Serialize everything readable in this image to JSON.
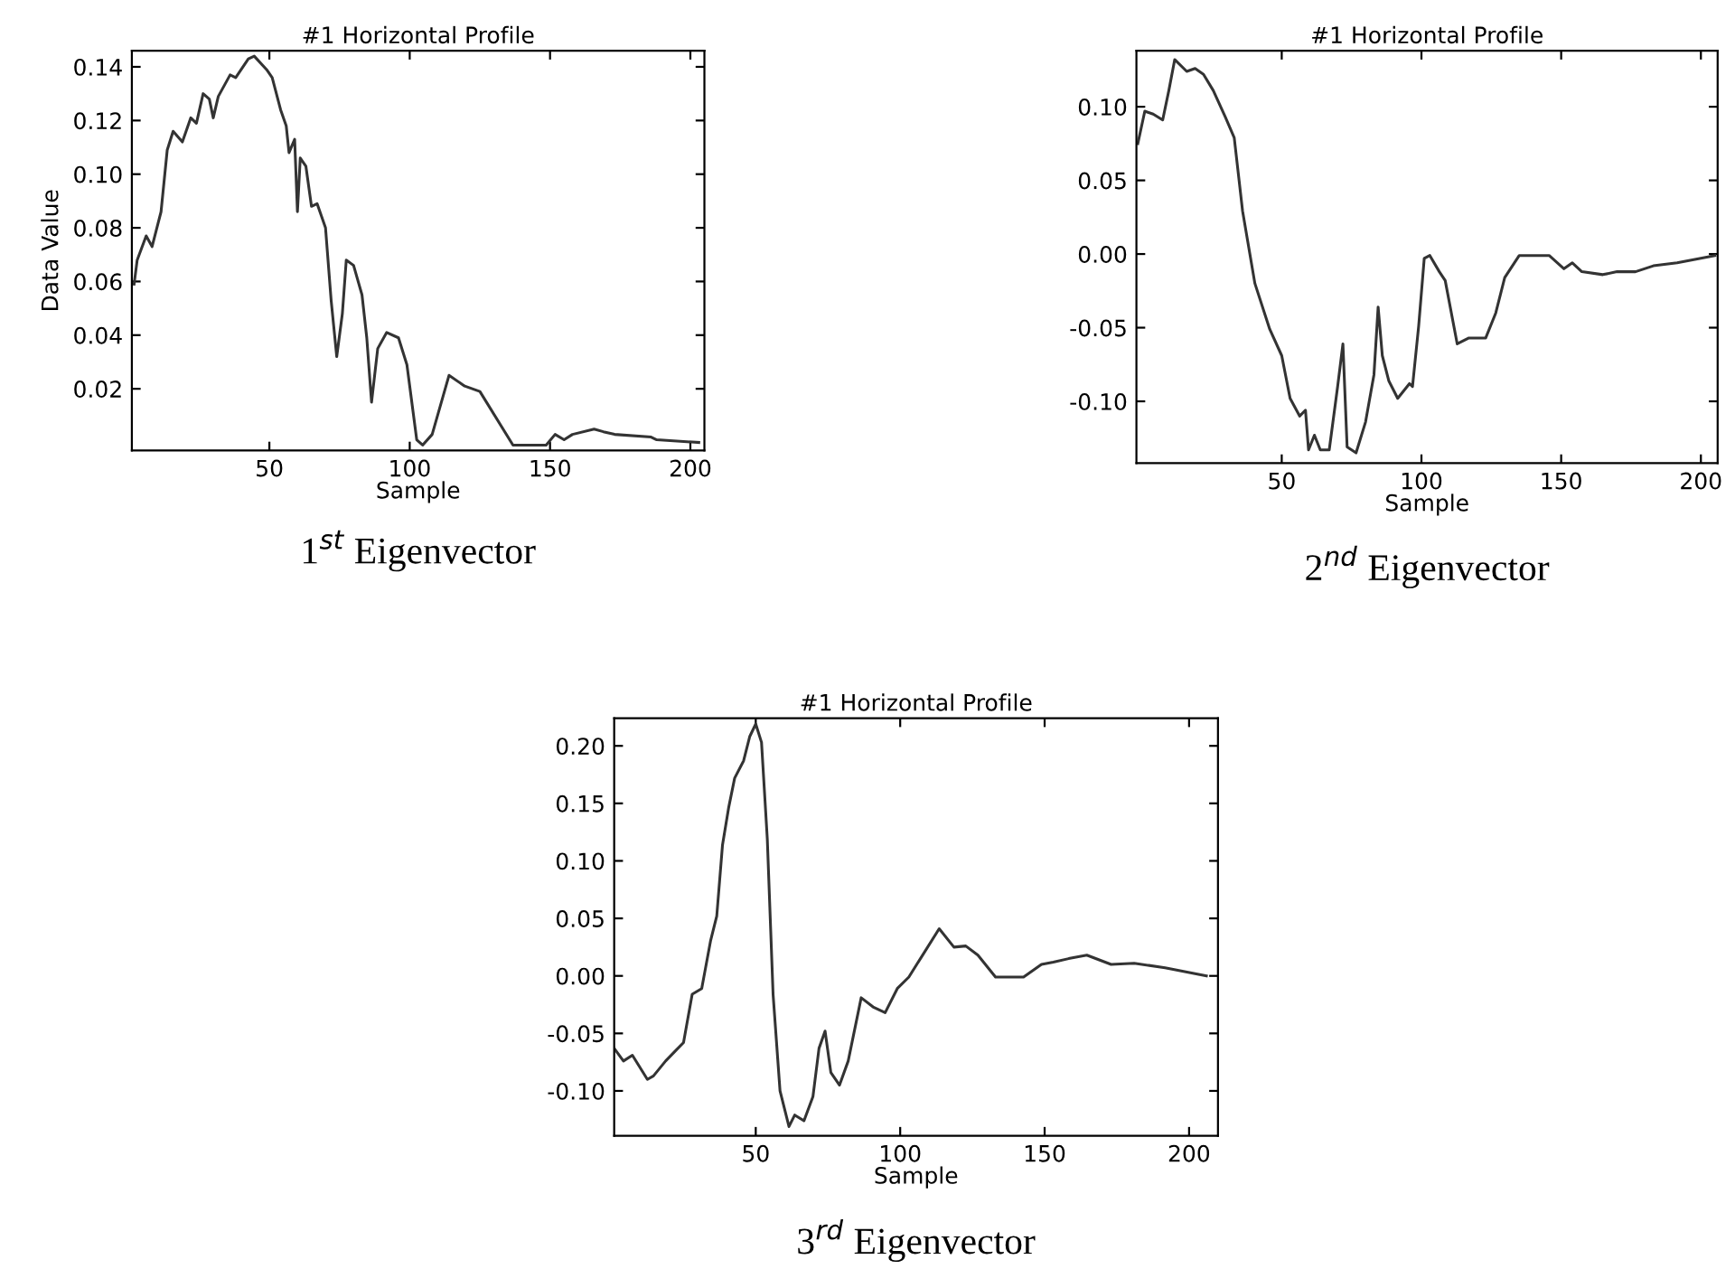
{
  "chart_data": [
    {
      "type": "line",
      "title": "#1 Horizontal Profile",
      "xlabel": "Sample",
      "ylabel": "Data Value",
      "annotations": [
        "1$^{st}$ Eigenvector"
      ],
      "xlim": [
        1,
        205
      ],
      "ylim": [
        -0.003,
        0.146
      ],
      "xticks": [
        50,
        100,
        150,
        200
      ],
      "yticks": [
        {
          "value": 0.02,
          "label": "0.02"
        },
        {
          "value": 0.04,
          "label": "0.04"
        },
        {
          "value": 0.06,
          "label": "0.06"
        },
        {
          "value": 0.08,
          "label": "0.08"
        },
        {
          "value": 0.1,
          "label": "0.10"
        },
        {
          "value": 0.12,
          "label": "0.12"
        },
        {
          "value": 0.14,
          "label": "0.14"
        }
      ],
      "series": [
        {
          "color": "#333333",
          "x": [
            1.8,
            2.9,
            6.1,
            8.2,
            11.4,
            13.6,
            15.7,
            19,
            22,
            24,
            26.4,
            28.6,
            30,
            31.8,
            36,
            38,
            42.5,
            44.6,
            49,
            51,
            54,
            56,
            57,
            59,
            60,
            61,
            63,
            65,
            67,
            70,
            72,
            74,
            76,
            77.4,
            80,
            83,
            84.7,
            86.4,
            88.6,
            91.8,
            96,
            99,
            102.5,
            104.6,
            108,
            114,
            119.6,
            125,
            136.8,
            148.6,
            151.8,
            155,
            158,
            165.7,
            169,
            173,
            186,
            188,
            203
          ],
          "values": [
            0.059,
            0.068,
            0.077,
            0.073,
            0.086,
            0.109,
            0.116,
            0.112,
            0.121,
            0.119,
            0.13,
            0.128,
            0.121,
            0.129,
            0.137,
            0.136,
            0.143,
            0.144,
            0.139,
            0.136,
            0.124,
            0.118,
            0.108,
            0.113,
            0.086,
            0.106,
            0.103,
            0.088,
            0.089,
            0.08,
            0.053,
            0.032,
            0.048,
            0.068,
            0.066,
            0.055,
            0.039,
            0.015,
            0.035,
            0.041,
            0.039,
            0.029,
            0.001,
            -0.001,
            0.003,
            0.025,
            0.021,
            0.019,
            -0.001,
            -0.001,
            0.003,
            0.001,
            0.003,
            0.005,
            0.004,
            0.003,
            0.002,
            0.001,
            0.0
          ]
        }
      ]
    },
    {
      "type": "line",
      "title": "#1 Horizontal Profile",
      "xlabel": "Sample",
      "annotations": [
        "2$^{nd}$ Eigenvector"
      ],
      "xlim": [
        -2,
        206
      ],
      "ylim": [
        -0.142,
        0.138
      ],
      "xticks": [
        50,
        100,
        150,
        200
      ],
      "yticks": [
        {
          "value": -0.1,
          "label": "-0.10"
        },
        {
          "value": -0.05,
          "label": "-0.05"
        },
        {
          "value": 0.0,
          "label": "0.00"
        },
        {
          "value": 0.05,
          "label": "0.05"
        },
        {
          "value": 0.1,
          "label": "0.10"
        }
      ],
      "series": [
        {
          "color": "#333333",
          "x": [
            -1.5,
            1,
            4,
            7.4,
            9.6,
            11.7,
            16,
            19,
            22,
            25.5,
            29.8,
            33,
            36,
            40.4,
            45.7,
            50,
            53,
            56.4,
            58.5,
            59.6,
            61.7,
            63.8,
            67,
            70,
            71.9,
            73.4,
            76.6,
            80,
            83,
            84.5,
            86,
            88.3,
            91.5,
            95.7,
            96.8,
            99,
            101,
            103,
            106.4,
            108.5,
            112.8,
            117,
            123,
            126.6,
            129.8,
            135,
            145.7,
            151,
            154,
            157.4,
            164.9,
            170,
            176.6,
            183,
            191.5,
            205
          ],
          "values": [
            0.075,
            0.097,
            0.095,
            0.091,
            0.111,
            0.132,
            0.124,
            0.126,
            0.122,
            0.111,
            0.093,
            0.079,
            0.029,
            -0.02,
            -0.051,
            -0.069,
            -0.098,
            -0.11,
            -0.106,
            -0.133,
            -0.123,
            -0.133,
            -0.133,
            -0.09,
            -0.061,
            -0.131,
            -0.135,
            -0.114,
            -0.082,
            -0.036,
            -0.069,
            -0.086,
            -0.098,
            -0.088,
            -0.09,
            -0.049,
            -0.003,
            -0.001,
            -0.012,
            -0.018,
            -0.061,
            -0.057,
            -0.057,
            -0.04,
            -0.016,
            -0.001,
            -0.001,
            -0.01,
            -0.006,
            -0.012,
            -0.014,
            -0.012,
            -0.012,
            -0.008,
            -0.006,
            -0.001
          ]
        }
      ]
    },
    {
      "type": "line",
      "title": "#1 Horizontal Profile",
      "xlabel": "Sample",
      "annotations": [
        "3$^{rd}$ Eigenvector"
      ],
      "xlim": [
        1,
        210
      ],
      "ylim": [
        -0.139,
        0.224
      ],
      "xticks": [
        50,
        100,
        150,
        200
      ],
      "yticks": [
        {
          "value": -0.1,
          "label": "-0.10"
        },
        {
          "value": -0.05,
          "label": "-0.05"
        },
        {
          "value": 0.0,
          "label": "0.00"
        },
        {
          "value": 0.05,
          "label": "0.05"
        },
        {
          "value": 0.1,
          "label": "0.10"
        },
        {
          "value": 0.15,
          "label": "0.15"
        },
        {
          "value": 0.2,
          "label": "0.20"
        }
      ],
      "series": [
        {
          "color": "#333333",
          "x": [
            1,
            4.2,
            7.3,
            12.5,
            14.6,
            18.8,
            21.9,
            25,
            28,
            31.3,
            34.4,
            36.5,
            38.5,
            40.6,
            42.7,
            45.8,
            47.9,
            50,
            52,
            54,
            56,
            58.4,
            61.5,
            63.5,
            66.7,
            69.8,
            71.9,
            74,
            76,
            79,
            82,
            86.5,
            90.6,
            94.8,
            99,
            103,
            107,
            113.5,
            118.6,
            122.7,
            126.9,
            133,
            142.7,
            148.9,
            153,
            158.3,
            164.6,
            173,
            181,
            191.7,
            206
          ],
          "values": [
            -0.063,
            -0.074,
            -0.069,
            -0.09,
            -0.087,
            -0.074,
            -0.066,
            -0.058,
            -0.016,
            -0.011,
            0.031,
            0.052,
            0.114,
            0.146,
            0.172,
            0.187,
            0.208,
            0.219,
            0.203,
            0.119,
            -0.016,
            -0.1,
            -0.131,
            -0.121,
            -0.126,
            -0.105,
            -0.063,
            -0.048,
            -0.084,
            -0.095,
            -0.074,
            -0.019,
            -0.027,
            -0.032,
            -0.011,
            -0.001,
            0.015,
            0.041,
            0.025,
            0.026,
            0.018,
            -0.001,
            -0.001,
            0.01,
            0.012,
            0.015,
            0.018,
            0.01,
            0.011,
            0.007,
            0.0
          ]
        }
      ]
    }
  ]
}
